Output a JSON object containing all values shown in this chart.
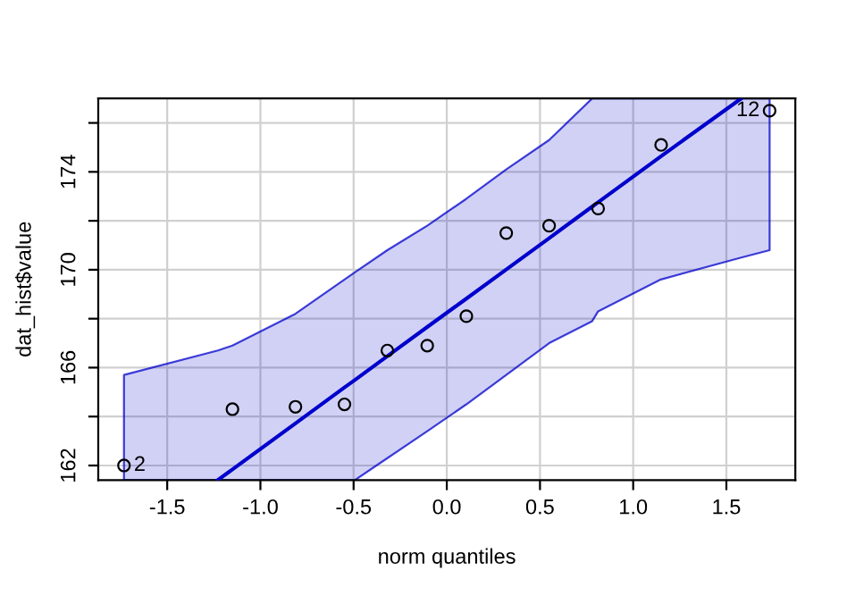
{
  "chart_data": {
    "type": "scatter",
    "xlabel": "norm quantiles",
    "ylabel": "dat_hist$value",
    "xlim": [
      -1.87,
      1.87
    ],
    "ylim": [
      161.4,
      177.0
    ],
    "xticks": [
      {
        "value": -1.5,
        "label": "-1.5"
      },
      {
        "value": -1.0,
        "label": "-1.0"
      },
      {
        "value": -0.5,
        "label": "-0.5"
      },
      {
        "value": 0.0,
        "label": "0.0"
      },
      {
        "value": 0.5,
        "label": "0.5"
      },
      {
        "value": 1.0,
        "label": "1.0"
      },
      {
        "value": 1.5,
        "label": "1.5"
      }
    ],
    "yticks": [
      162,
      {
        "value": 164,
        "label": null
      },
      166,
      {
        "value": 168,
        "label": null
      },
      170,
      {
        "value": 172,
        "label": null
      },
      174,
      {
        "value": 176,
        "label": null
      }
    ],
    "grid": true,
    "marker": "circle",
    "series": [
      {
        "type": "line",
        "color": "#0000cc",
        "marker": "none",
        "line_style": "solid",
        "x": [
          -1.732,
          -1.228,
          -1.15,
          -0.812,
          -0.549,
          -0.492,
          -0.319,
          -0.105,
          0.105,
          0.319,
          0.549,
          0.78,
          0.812,
          1.148,
          1.58,
          1.732
        ],
        "values": [
          null,
          161.41,
          161.84,
          163.72,
          165.19,
          165.5,
          166.47,
          167.66,
          168.82,
          170.01,
          171.29,
          172.58,
          172.76,
          174.63,
          177.0,
          null
        ],
        "lower": [
          161.4,
          161.4,
          161.4,
          161.4,
          161.4,
          161.41,
          162.3,
          163.4,
          164.5,
          165.7,
          167.0,
          167.9,
          168.3,
          169.6,
          170.5,
          170.8
        ],
        "upper": [
          165.7,
          166.7,
          166.9,
          168.2,
          169.6,
          169.9,
          170.8,
          171.8,
          172.9,
          174.1,
          175.3,
          177.0,
          177.0,
          177.0,
          177.0,
          177.0
        ]
      },
      {
        "color": "#000000",
        "x": [
          -1.732,
          -1.15,
          -0.812,
          -0.549,
          -0.319,
          -0.105,
          0.105,
          0.319,
          0.549,
          0.812,
          1.15,
          1.732
        ],
        "values": [
          162.0,
          164.3,
          164.4,
          164.5,
          166.7,
          166.9,
          168.1,
          171.5,
          171.8,
          172.5,
          175.1,
          176.5
        ]
      }
    ],
    "annotations": [
      {
        "text": "2",
        "x": -1.732,
        "y": 162.0
      },
      {
        "text": "12",
        "x": 1.732,
        "y": 176.5
      }
    ]
  }
}
